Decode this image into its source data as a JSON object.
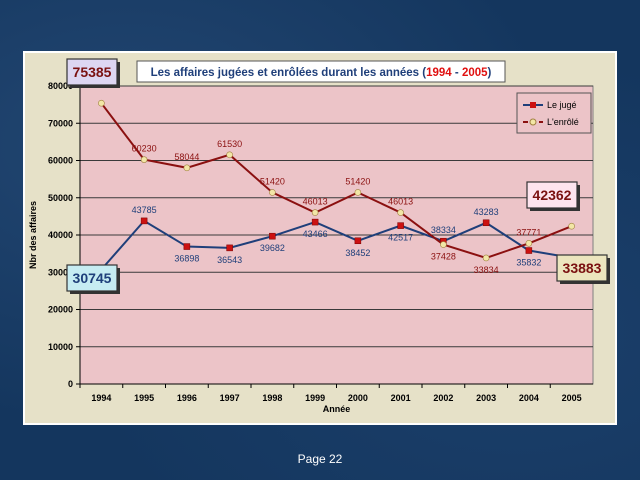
{
  "footer": {
    "page_label": "Page 22"
  },
  "chart_data": {
    "type": "line",
    "title_parts": [
      "Les affaires jugées et enrôlées durant les années (",
      "1994",
      " - ",
      "2005",
      ")"
    ],
    "xlabel": "Année",
    "ylabel": "Nbr des affaires",
    "categories": [
      "1994",
      "1995",
      "1996",
      "1997",
      "1998",
      "1999",
      "2000",
      "2001",
      "2002",
      "2003",
      "2004",
      "2005"
    ],
    "ylim": [
      0,
      80000
    ],
    "yticks": [
      0,
      10000,
      20000,
      30000,
      40000,
      50000,
      60000,
      70000,
      80000
    ],
    "grid": true,
    "legend_position": "top-right",
    "series": [
      {
        "name": "Le jugé",
        "color": "#1f3f7a",
        "values": [
          30745,
          43785,
          36898,
          36543,
          39682,
          43466,
          38452,
          42517,
          38334,
          43283,
          35832,
          33883
        ]
      },
      {
        "name": "L'enrôlé",
        "color": "#8b1010",
        "values": [
          75385,
          60230,
          58044,
          61530,
          51420,
          46013,
          51420,
          46013,
          37428,
          33834,
          37771,
          42362
        ]
      }
    ],
    "callouts": [
      {
        "text": "75385",
        "series": 1,
        "index": 0,
        "bg": "#ddd6f2",
        "fg": "#7a1010"
      },
      {
        "text": "30745",
        "series": 0,
        "index": 0,
        "bg": "#c6ecf2",
        "fg": "#1f3f7a"
      },
      {
        "text": "42362",
        "series": 1,
        "index": 11,
        "bg": "#fde4ee",
        "fg": "#7a1010"
      },
      {
        "text": "33883",
        "series": 0,
        "index": 11,
        "bg": "#ece5be",
        "fg": "#7a1010"
      }
    ]
  }
}
